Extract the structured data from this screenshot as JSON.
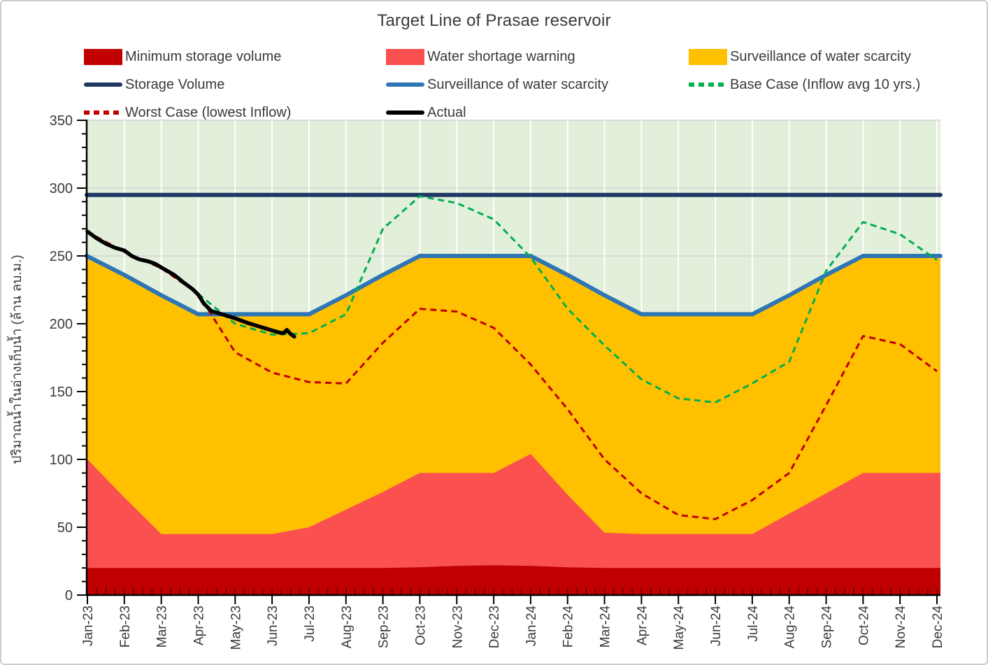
{
  "title": "Target Line of Prasae reservoir",
  "colors": {
    "minimum_storage": "#C00000",
    "water_shortage": "#FA5050",
    "surveillance_area": "#FFC000",
    "storage_volume_line": "#1F3864",
    "surveillance_line": "#2E75B6",
    "base_case_line": "#00B050",
    "worst_case_line": "#C00000",
    "actual_line": "#000000",
    "plot_background": "#E2EFDA",
    "h_gridline": "#D9D9D9",
    "v_gridline": "#FFFFFF",
    "axis": "#000000",
    "text": "#3a3a3a"
  },
  "legend": {
    "items": [
      {
        "label": "Minimum storage volume",
        "swatch": "fill",
        "color": "#C00000"
      },
      {
        "label": "Water shortage warning",
        "swatch": "fill",
        "color": "#FA5050"
      },
      {
        "label": "Surveillance of water scarcity",
        "swatch": "fill",
        "color": "#FFC000"
      },
      {
        "label": "Storage Volume",
        "swatch": "line",
        "color": "#1F3864"
      },
      {
        "label": "Surveillance of water scarcity",
        "swatch": "line",
        "color": "#2E75B6"
      },
      {
        "label": "Base Case (Inflow avg 10 yrs.)",
        "swatch": "dash",
        "color": "#00B050"
      },
      {
        "label": "Worst Case (lowest Inflow)",
        "swatch": "dash",
        "color": "#C00000"
      },
      {
        "label": "Actual",
        "swatch": "line",
        "color": "#000000"
      }
    ]
  },
  "chart_data": {
    "type": "area+line combo",
    "title": "Target Line of Prasae reservoir",
    "ylabel": "ปริมาณน้ำในอ่างเก็บน้ำ (ล้าน ลบ.ม.)",
    "xlabel": "",
    "y_axis": {
      "min": 0,
      "max": 350,
      "major_step": 50,
      "minor_step": 10
    },
    "grid": {
      "horizontal": true,
      "vertical": true
    },
    "legend_position": "top",
    "x_categories": [
      "Jan-23",
      "Feb-23",
      "Mar-23",
      "Apr-23",
      "May-23",
      "Jun-23",
      "Jul-23",
      "Aug-23",
      "Sep-23",
      "Oct-23",
      "Nov-23",
      "Dec-23",
      "Jan-24",
      "Feb-24",
      "Mar-24",
      "Apr-24",
      "May-24",
      "Jun-24",
      "Jul-24",
      "Aug-24",
      "Sep-24",
      "Oct-24",
      "Nov-24",
      "Dec-24"
    ],
    "series": [
      {
        "name": "Surveillance of water scarcity",
        "type": "area",
        "color": "#FFC000",
        "values": [
          250,
          236,
          221,
          207,
          207,
          207,
          207,
          221,
          236,
          250,
          250,
          250,
          250,
          236,
          221,
          207,
          207,
          207,
          207,
          221,
          236,
          250,
          250,
          250
        ]
      },
      {
        "name": "Water shortage warning",
        "type": "area",
        "color": "#FA5050",
        "values": [
          100,
          72,
          45,
          45,
          45,
          45,
          50,
          63,
          76,
          90,
          90,
          90,
          104,
          74,
          46,
          45,
          45,
          45,
          45,
          60,
          75,
          90,
          90,
          90
        ]
      },
      {
        "name": "Minimum storage volume",
        "type": "area",
        "color": "#C00000",
        "values": [
          20,
          20,
          20,
          20,
          20,
          20,
          20,
          20,
          20,
          20.5,
          21.5,
          22,
          21.5,
          20.5,
          20,
          20,
          20,
          20,
          20,
          20,
          20,
          20,
          20,
          20
        ]
      },
      {
        "name": "Storage Volume",
        "type": "line",
        "color": "#1F3864",
        "width": 6,
        "values": [
          295,
          295,
          295,
          295,
          295,
          295,
          295,
          295,
          295,
          295,
          295,
          295,
          295,
          295,
          295,
          295,
          295,
          295,
          295,
          295,
          295,
          295,
          295,
          295
        ]
      },
      {
        "name": "Surveillance of water scarcity",
        "type": "line",
        "color": "#2E75B6",
        "width": 6,
        "values": [
          250,
          236,
          221,
          207,
          207,
          207,
          207,
          221,
          236,
          250,
          250,
          250,
          250,
          236,
          221,
          207,
          207,
          207,
          207,
          221,
          236,
          250,
          250,
          250
        ]
      },
      {
        "name": "Worst Case (lowest Inflow)",
        "type": "line",
        "dash": true,
        "color": "#C00000",
        "width": 3,
        "values": [
          268,
          253,
          241,
          222,
          179,
          164,
          157,
          156,
          186,
          211,
          209,
          197,
          170,
          137,
          100,
          75,
          59,
          56,
          70,
          90,
          140,
          191,
          185,
          165
        ]
      },
      {
        "name": "Base Case (Inflow avg 10 yrs.)",
        "type": "line",
        "dash": true,
        "color": "#00B050",
        "width": 3,
        "values": [
          null,
          null,
          null,
          222,
          200,
          192,
          193,
          207,
          270,
          294,
          289,
          277,
          249,
          211,
          184,
          159,
          145,
          142,
          156,
          172,
          239,
          275,
          266,
          247
        ]
      },
      {
        "name": "Actual",
        "type": "line",
        "color": "#000000",
        "width": 5.5,
        "points": [
          [
            0,
            268
          ],
          [
            0.25,
            263
          ],
          [
            0.5,
            259
          ],
          [
            0.75,
            256
          ],
          [
            1,
            254
          ],
          [
            1.2,
            250
          ],
          [
            1.4,
            247.5
          ],
          [
            1.65,
            246
          ],
          [
            1.85,
            244
          ],
          [
            2,
            241.5
          ],
          [
            2.35,
            236
          ],
          [
            2.6,
            230.5
          ],
          [
            2.85,
            225.5
          ],
          [
            3,
            221.5
          ],
          [
            3.15,
            215
          ],
          [
            3.35,
            209.5
          ],
          [
            3.7,
            206.5
          ],
          [
            4,
            204
          ],
          [
            4.35,
            200.5
          ],
          [
            4.65,
            198
          ],
          [
            4.95,
            195.5
          ],
          [
            5.2,
            193.5
          ],
          [
            5.3,
            193
          ],
          [
            5.4,
            195.5
          ],
          [
            5.5,
            192.5
          ],
          [
            5.6,
            190.5
          ]
        ]
      }
    ]
  }
}
